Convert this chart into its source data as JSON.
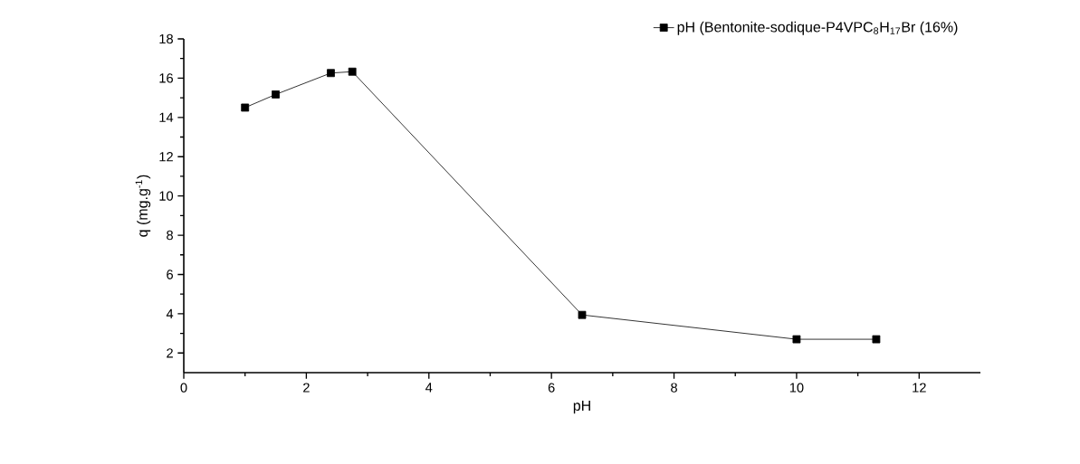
{
  "chart_data": {
    "type": "line",
    "xlabel": "pH",
    "ylabel": "q (mg.g$^{-1}$)",
    "x": [
      1,
      1.5,
      2.4,
      2.75,
      6.5,
      10,
      11.3
    ],
    "series": [
      {
        "name": "pH (Bentonite-sodique-P4VPC$_{8}$H$_{17}$Br (16%)",
        "color": "#000000",
        "values": [
          14.5,
          15.17,
          16.26,
          16.33,
          3.94,
          2.7,
          2.7
        ]
      }
    ],
    "xlim": [
      0,
      13
    ],
    "ylim": [
      1,
      18
    ],
    "xticks": [
      0,
      2,
      4,
      6,
      8,
      10,
      12
    ],
    "yticks": [
      2,
      4,
      6,
      8,
      10,
      12,
      14,
      16,
      18
    ],
    "grid": false,
    "legend": "top right",
    "marker": "square",
    "line_style": "solid"
  }
}
